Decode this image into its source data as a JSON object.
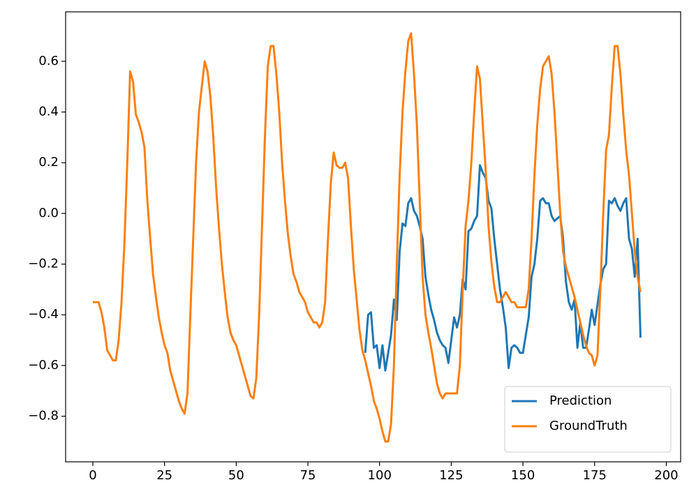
{
  "chart_data": {
    "type": "line",
    "x": [
      0,
      1,
      2,
      3,
      4,
      5,
      6,
      7,
      8,
      9,
      10,
      11,
      12,
      13,
      14,
      15,
      16,
      17,
      18,
      19,
      20,
      21,
      22,
      23,
      24,
      25,
      26,
      27,
      28,
      29,
      30,
      31,
      32,
      33,
      34,
      35,
      36,
      37,
      38,
      39,
      40,
      41,
      42,
      43,
      44,
      45,
      46,
      47,
      48,
      49,
      50,
      51,
      52,
      53,
      54,
      55,
      56,
      57,
      58,
      59,
      60,
      61,
      62,
      63,
      64,
      65,
      66,
      67,
      68,
      69,
      70,
      71,
      72,
      73,
      74,
      75,
      76,
      77,
      78,
      79,
      80,
      81,
      82,
      83,
      84,
      85,
      86,
      87,
      88,
      89,
      90,
      91,
      92,
      93,
      94,
      95,
      96,
      97,
      98,
      99,
      100,
      101,
      102,
      103,
      104,
      105,
      106,
      107,
      108,
      109,
      110,
      111,
      112,
      113,
      114,
      115,
      116,
      117,
      118,
      119,
      120,
      121,
      122,
      123,
      124,
      125,
      126,
      127,
      128,
      129,
      130,
      131,
      132,
      133,
      134,
      135,
      136,
      137,
      138,
      139,
      140,
      141,
      142,
      143,
      144,
      145,
      146,
      147,
      148,
      149,
      150,
      151,
      152,
      153,
      154,
      155,
      156,
      157,
      158,
      159,
      160,
      161,
      162,
      163,
      164,
      165,
      166,
      167,
      168,
      169,
      170,
      171,
      172,
      173,
      174,
      175,
      176,
      177,
      178,
      179,
      180,
      181,
      182,
      183,
      184,
      185,
      186,
      187,
      188,
      189,
      190,
      191
    ],
    "series": [
      {
        "name": "Prediction",
        "color": "#1f77b4",
        "values": [
          null,
          null,
          null,
          null,
          null,
          null,
          null,
          null,
          null,
          null,
          null,
          null,
          null,
          null,
          null,
          null,
          null,
          null,
          null,
          null,
          null,
          null,
          null,
          null,
          null,
          null,
          null,
          null,
          null,
          null,
          null,
          null,
          null,
          null,
          null,
          null,
          null,
          null,
          null,
          null,
          null,
          null,
          null,
          null,
          null,
          null,
          null,
          null,
          null,
          null,
          null,
          null,
          null,
          null,
          null,
          null,
          null,
          null,
          null,
          null,
          null,
          null,
          null,
          null,
          null,
          null,
          null,
          null,
          null,
          null,
          null,
          null,
          null,
          null,
          null,
          null,
          null,
          null,
          null,
          null,
          null,
          null,
          null,
          null,
          null,
          null,
          null,
          null,
          null,
          null,
          null,
          null,
          null,
          null,
          null,
          -0.55,
          -0.4,
          -0.39,
          -0.53,
          -0.52,
          -0.61,
          -0.52,
          -0.62,
          -0.55,
          -0.48,
          -0.34,
          -0.42,
          -0.15,
          -0.04,
          -0.05,
          0.04,
          0.06,
          0.01,
          -0.01,
          -0.05,
          -0.1,
          -0.25,
          -0.32,
          -0.38,
          -0.42,
          -0.47,
          -0.5,
          -0.52,
          -0.53,
          -0.59,
          -0.5,
          -0.41,
          -0.45,
          -0.4,
          -0.26,
          -0.3,
          -0.07,
          -0.06,
          -0.03,
          -0.01,
          0.19,
          0.16,
          0.14,
          0.05,
          0.02,
          -0.1,
          -0.2,
          -0.3,
          -0.37,
          -0.45,
          -0.61,
          -0.53,
          -0.52,
          -0.53,
          -0.55,
          -0.55,
          -0.48,
          -0.41,
          -0.25,
          -0.2,
          -0.1,
          0.05,
          0.06,
          0.04,
          0.04,
          -0.01,
          -0.03,
          -0.02,
          -0.01,
          -0.1,
          -0.27,
          -0.35,
          -0.38,
          -0.34,
          -0.53,
          -0.43,
          -0.53,
          -0.53,
          -0.46,
          -0.38,
          -0.44,
          -0.36,
          -0.28,
          -0.22,
          -0.2,
          0.05,
          0.04,
          0.06,
          0.03,
          0.01,
          0.04,
          0.06,
          -0.1,
          -0.14,
          -0.25,
          -0.1,
          -0.49
        ]
      },
      {
        "name": "GroundTruth",
        "color": "#ff7f0e",
        "values": [
          -0.35,
          -0.35,
          -0.35,
          -0.39,
          -0.45,
          -0.54,
          -0.56,
          -0.58,
          -0.58,
          -0.5,
          -0.35,
          -0.12,
          0.2,
          0.56,
          0.52,
          0.39,
          0.36,
          0.32,
          0.26,
          0.05,
          -0.1,
          -0.24,
          -0.33,
          -0.41,
          -0.47,
          -0.52,
          -0.55,
          -0.62,
          -0.66,
          -0.7,
          -0.74,
          -0.77,
          -0.79,
          -0.71,
          -0.4,
          -0.1,
          0.2,
          0.4,
          0.5,
          0.6,
          0.56,
          0.46,
          0.3,
          0.1,
          -0.06,
          -0.2,
          -0.31,
          -0.41,
          -0.47,
          -0.5,
          -0.52,
          -0.56,
          -0.6,
          -0.64,
          -0.68,
          -0.72,
          -0.73,
          -0.65,
          -0.4,
          -0.05,
          0.3,
          0.58,
          0.66,
          0.66,
          0.55,
          0.4,
          0.2,
          0.05,
          -0.08,
          -0.17,
          -0.24,
          -0.27,
          -0.31,
          -0.33,
          -0.35,
          -0.39,
          -0.41,
          -0.43,
          -0.43,
          -0.45,
          -0.43,
          -0.35,
          -0.1,
          0.12,
          0.24,
          0.19,
          0.18,
          0.18,
          0.2,
          0.14,
          -0.05,
          -0.22,
          -0.34,
          -0.46,
          -0.54,
          -0.58,
          -0.63,
          -0.68,
          -0.74,
          -0.77,
          -0.81,
          -0.86,
          -0.9,
          -0.9,
          -0.83,
          -0.6,
          -0.2,
          0.15,
          0.4,
          0.56,
          0.68,
          0.71,
          0.55,
          0.35,
          0.05,
          -0.25,
          -0.4,
          -0.47,
          -0.53,
          -0.6,
          -0.67,
          -0.71,
          -0.73,
          -0.71,
          -0.71,
          -0.71,
          -0.71,
          -0.71,
          -0.6,
          -0.3,
          -0.05,
          0.05,
          0.2,
          0.4,
          0.58,
          0.53,
          0.35,
          0.17,
          -0.05,
          -0.19,
          -0.29,
          -0.35,
          -0.35,
          -0.33,
          -0.31,
          -0.33,
          -0.35,
          -0.35,
          -0.37,
          -0.37,
          -0.37,
          -0.37,
          -0.3,
          -0.1,
          0.15,
          0.35,
          0.49,
          0.58,
          0.6,
          0.62,
          0.55,
          0.4,
          0.2,
          0.0,
          -0.15,
          -0.21,
          -0.25,
          -0.29,
          -0.33,
          -0.38,
          -0.43,
          -0.48,
          -0.52,
          -0.55,
          -0.56,
          -0.6,
          -0.56,
          -0.3,
          0.0,
          0.25,
          0.31,
          0.5,
          0.66,
          0.66,
          0.55,
          0.39,
          0.25,
          0.15,
          0.0,
          -0.15,
          -0.25,
          -0.31
        ]
      }
    ],
    "xlim": [
      -9.5,
      205
    ],
    "ylim": [
      -0.98,
      0.795
    ],
    "xticks": [
      0,
      25,
      50,
      75,
      100,
      125,
      150,
      175,
      200
    ],
    "yticks": [
      {
        "value": -0.8,
        "label": "−0.8"
      },
      {
        "value": -0.6,
        "label": "−0.6"
      },
      {
        "value": -0.4,
        "label": "−0.4"
      },
      {
        "value": -0.2,
        "label": "−0.2"
      },
      {
        "value": 0,
        "label": "0.0"
      },
      0.2,
      0.4,
      0.6
    ],
    "legend": "lower right",
    "grid": false
  }
}
